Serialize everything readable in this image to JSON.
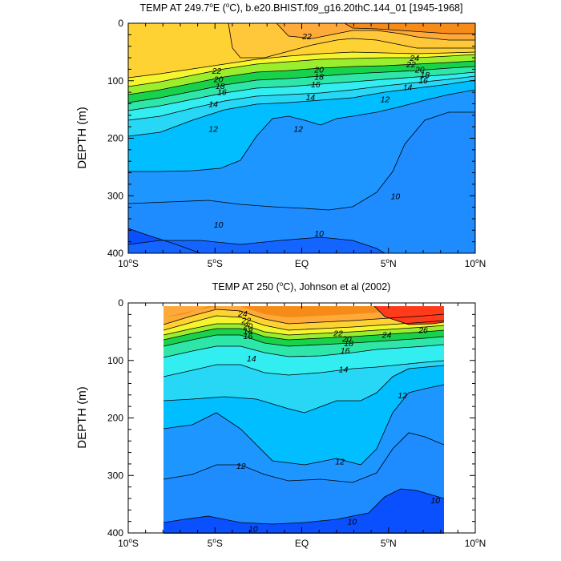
{
  "chart_data": [
    {
      "type": "contour",
      "title": "TEMP AT 249.7°E (°C), b.e20.BHIST.f09_g16.20thC.144_01 [1945-1968]",
      "title_prefix": "TEMP AT 249.7",
      "title_deg1": "o",
      "title_mid": "E (",
      "title_deg2": "o",
      "title_suffix": "C), b.e20.BHIST.f09_g16.20thC.144_01 [1945-1968]",
      "ylabel": "DEPTH (m)",
      "xlim": [
        -10,
        10
      ],
      "ylim": [
        400,
        0
      ],
      "data_extent": [
        -10,
        10
      ],
      "x_ticks": [
        {
          "value": -10,
          "label": "10",
          "deg": "o",
          "suffix": "S"
        },
        {
          "value": -5,
          "label": "5",
          "deg": "o",
          "suffix": "S"
        },
        {
          "value": 0,
          "label": "EQ",
          "deg": "",
          "suffix": ""
        },
        {
          "value": 5,
          "label": "5",
          "deg": "o",
          "suffix": "N"
        },
        {
          "value": 10,
          "label": "10",
          "deg": "o",
          "suffix": "N"
        }
      ],
      "y_ticks": [
        {
          "value": 0,
          "label": "0"
        },
        {
          "value": 100,
          "label": "100"
        },
        {
          "value": 200,
          "label": "200"
        },
        {
          "value": 300,
          "label": "300"
        },
        {
          "value": 400,
          "label": "400"
        }
      ],
      "contour_labels": [
        {
          "x": 0.3,
          "y": 22,
          "label": "22"
        },
        {
          "x": 6.5,
          "y": 60,
          "label": "24"
        },
        {
          "x": 6.3,
          "y": 71,
          "label": "22"
        },
        {
          "x": 6.8,
          "y": 80,
          "label": "20"
        },
        {
          "x": 7.1,
          "y": 89,
          "label": "18"
        },
        {
          "x": 7.0,
          "y": 99,
          "label": "16"
        },
        {
          "x": 6.1,
          "y": 111,
          "label": "14"
        },
        {
          "x": 4.8,
          "y": 132,
          "label": "12"
        },
        {
          "x": -4.9,
          "y": 82,
          "label": "22"
        },
        {
          "x": -4.8,
          "y": 97,
          "label": "20"
        },
        {
          "x": -4.7,
          "y": 109,
          "label": "18"
        },
        {
          "x": -4.6,
          "y": 119,
          "label": "16"
        },
        {
          "x": -5.1,
          "y": 140,
          "label": "14"
        },
        {
          "x": -5.1,
          "y": 183,
          "label": "12"
        },
        {
          "x": 1.0,
          "y": 80,
          "label": "20"
        },
        {
          "x": 1.0,
          "y": 93,
          "label": "18"
        },
        {
          "x": 0.8,
          "y": 106,
          "label": "16"
        },
        {
          "x": 0.5,
          "y": 128,
          "label": "14"
        },
        {
          "x": -0.2,
          "y": 183,
          "label": "12"
        },
        {
          "x": -4.8,
          "y": 350,
          "label": "10"
        },
        {
          "x": 1.0,
          "y": 365,
          "label": "10"
        },
        {
          "x": 5.4,
          "y": 300,
          "label": "10"
        }
      ]
    },
    {
      "type": "contour",
      "title": "TEMP AT 250 (°C), Johnson et al (2002)",
      "title_prefix": "TEMP AT 250 (",
      "title_deg1": "o",
      "title_mid": "C), Johnson et al (2002)",
      "title_deg2": "",
      "title_suffix": "",
      "ylabel": "DEPTH (m)",
      "xlim": [
        -10,
        10
      ],
      "ylim": [
        400,
        0
      ],
      "data_extent": [
        -8,
        8
      ],
      "x_ticks": [
        {
          "value": -10,
          "label": "10",
          "deg": "o",
          "suffix": "S"
        },
        {
          "value": -5,
          "label": "5",
          "deg": "o",
          "suffix": "S"
        },
        {
          "value": 0,
          "label": "EQ",
          "deg": "",
          "suffix": ""
        },
        {
          "value": 5,
          "label": "5",
          "deg": "o",
          "suffix": "N"
        },
        {
          "value": 10,
          "label": "10",
          "deg": "o",
          "suffix": "N"
        }
      ],
      "y_ticks": [
        {
          "value": 0,
          "label": "0"
        },
        {
          "value": 100,
          "label": "100"
        },
        {
          "value": 200,
          "label": "200"
        },
        {
          "value": 300,
          "label": "300"
        },
        {
          "value": 400,
          "label": "400"
        }
      ],
      "contour_labels": [
        {
          "x": -3.4,
          "y": 18,
          "label": "24"
        },
        {
          "x": -3.2,
          "y": 30,
          "label": "22"
        },
        {
          "x": -3.1,
          "y": 40,
          "label": "20"
        },
        {
          "x": -3.1,
          "y": 48,
          "label": "18"
        },
        {
          "x": -3.1,
          "y": 57,
          "label": "16"
        },
        {
          "x": -2.9,
          "y": 96,
          "label": "14"
        },
        {
          "x": 2.1,
          "y": 52,
          "label": "22"
        },
        {
          "x": 2.6,
          "y": 62,
          "label": "20"
        },
        {
          "x": 2.7,
          "y": 70,
          "label": "18"
        },
        {
          "x": 2.5,
          "y": 82,
          "label": "16"
        },
        {
          "x": 4.9,
          "y": 55,
          "label": "24"
        },
        {
          "x": 7.0,
          "y": 47,
          "label": "26"
        },
        {
          "x": 2.4,
          "y": 115,
          "label": "14"
        },
        {
          "x": 5.8,
          "y": 160,
          "label": "12"
        },
        {
          "x": -3.5,
          "y": 283,
          "label": "12"
        },
        {
          "x": 2.2,
          "y": 275,
          "label": "12"
        },
        {
          "x": -2.8,
          "y": 392,
          "label": "10"
        },
        {
          "x": 2.9,
          "y": 380,
          "label": "10"
        },
        {
          "x": 7.7,
          "y": 343,
          "label": "10"
        }
      ]
    }
  ]
}
